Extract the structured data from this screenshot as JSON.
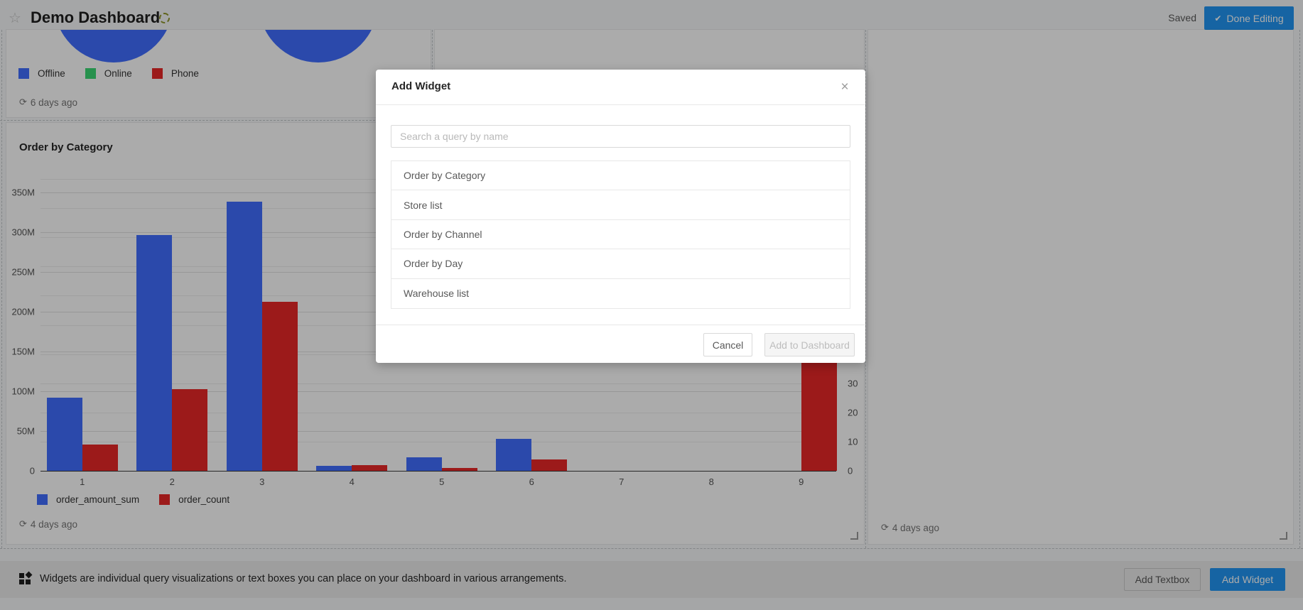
{
  "header": {
    "title": "Demo Dashboard",
    "star_icon": "☆",
    "saved_status": "Saved",
    "done_editing_label": "Done Editing",
    "check_icon": "✔"
  },
  "widgets": {
    "pie_widget": {
      "legend": [
        {
          "label": "Offline",
          "color": "#416EFF"
        },
        {
          "label": "Online",
          "color": "#3BD973"
        },
        {
          "label": "Phone",
          "color": "#E92828"
        }
      ],
      "updated": "6 days ago",
      "refresh_icon": "⟳"
    },
    "category_widget": {
      "title": "Order by Category",
      "updated": "4 days ago",
      "refresh_icon": "⟳"
    },
    "right_widget": {
      "updated": "4 days ago",
      "refresh_icon": "⟳"
    }
  },
  "chart_data": {
    "type": "bar",
    "title": "Order by Category",
    "categories": [
      "1",
      "2",
      "3",
      "4",
      "5",
      "6",
      "7",
      "8",
      "9"
    ],
    "series": [
      {
        "name": "order_amount_sum",
        "axis": "left",
        "color": "#416EFF",
        "values_millions": [
          92,
          296,
          338,
          6,
          17,
          40,
          0,
          0,
          0
        ]
      },
      {
        "name": "order_count",
        "axis": "right",
        "color": "#E92828",
        "values": [
          9,
          28,
          58,
          2,
          1,
          4,
          0,
          0,
          46
        ]
      }
    ],
    "y_left_ticks": [
      "0",
      "50M",
      "100M",
      "150M",
      "200M",
      "250M",
      "300M",
      "350M"
    ],
    "y_right_ticks": [
      "0",
      "10",
      "20",
      "30"
    ],
    "ylim_left_millions": [
      0,
      420
    ],
    "ylim_right": [
      0,
      102
    ],
    "xlabel": "",
    "ylabel": "",
    "grid": true,
    "legend_position": "bottom"
  },
  "modal": {
    "title": "Add Widget",
    "close_icon": "×",
    "search_placeholder": "Search a query by name",
    "queries": [
      "Order by Category",
      "Store list",
      "Order by Channel",
      "Order by Day",
      "Warehouse list"
    ],
    "cancel_label": "Cancel",
    "add_label": "Add to Dashboard"
  },
  "footer": {
    "message": "Widgets are individual query visualizations or text boxes you can place on your dashboard in various arrangements.",
    "add_textbox_label": "Add Textbox",
    "add_widget_label": "Add Widget"
  },
  "colors": {
    "primary_button": "#2196F3",
    "pie_fill": "#416EFF"
  }
}
